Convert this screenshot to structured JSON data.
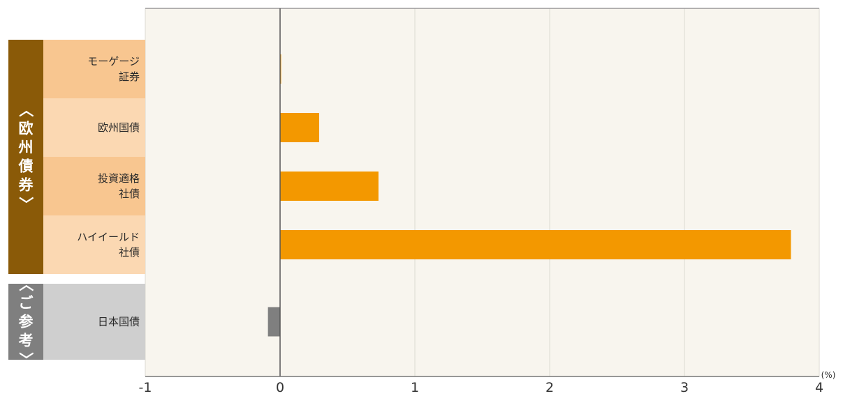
{
  "chart_data": {
    "type": "bar",
    "orientation": "horizontal",
    "title": "",
    "xlabel": "",
    "ylabel": "",
    "unit": "(%)",
    "xlim": [
      -1,
      4
    ],
    "xticks": [
      "-1",
      "0",
      "1",
      "2",
      "3",
      "4"
    ],
    "grid": "vertical",
    "groups": [
      {
        "label": "〈欧州債券〉",
        "color": "#8a5a08",
        "label_background": "#f8c690",
        "alt_background": "#fbd8b2",
        "categories": [
          {
            "label": "モーゲージ\n証券",
            "value": 0.0
          },
          {
            "label": "欧州国債",
            "value": 0.29
          },
          {
            "label": "投資適格\n社債",
            "value": 0.73
          },
          {
            "label": "ハイイールド\n社債",
            "value": 3.79
          }
        ],
        "bar_color": "#f39800"
      },
      {
        "label": "〈ご参考〉",
        "color": "#7f7f7f",
        "label_background": "#cfcfcf",
        "categories": [
          {
            "label": "日本国債",
            "value": -0.09
          }
        ],
        "bar_color": "#7f7f7f"
      }
    ]
  }
}
